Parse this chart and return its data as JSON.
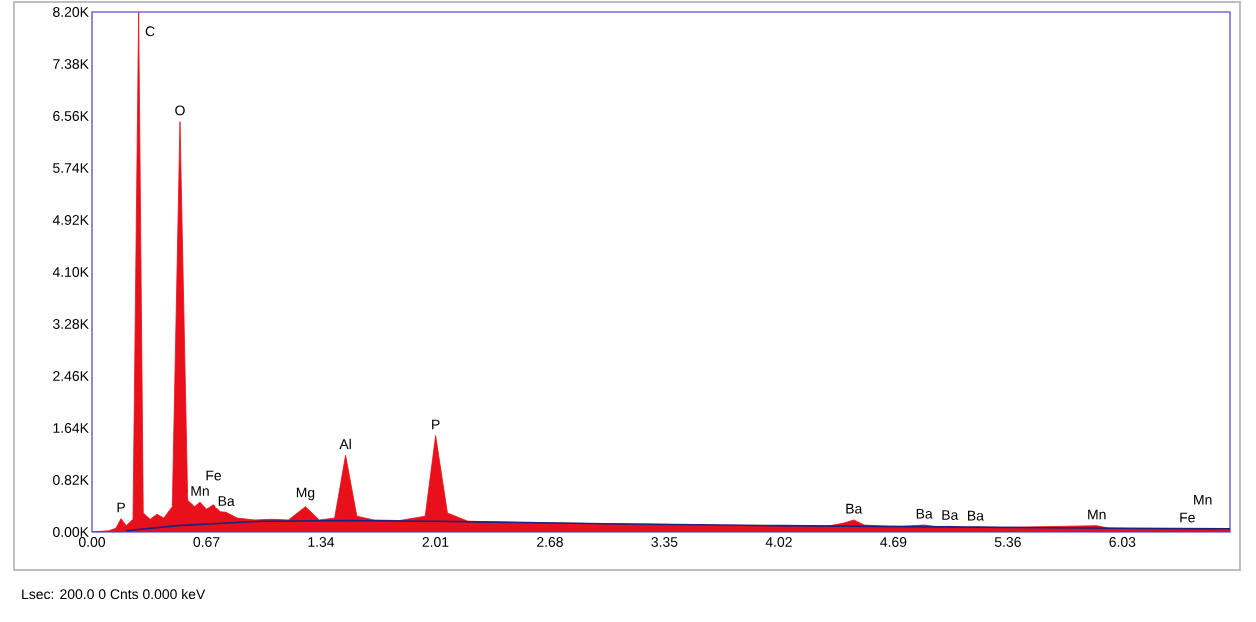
{
  "chart_data": {
    "type": "area",
    "xlim": [
      0,
      6.66
    ],
    "ylim": [
      0,
      8200
    ],
    "xticks": [
      {
        "value": 0,
        "label": "0.00"
      },
      0.67,
      1.34,
      2.01,
      2.68,
      3.35,
      4.02,
      4.69,
      5.36,
      6.03
    ],
    "yticks": [
      {
        "value": 0,
        "label": "0.00K"
      },
      {
        "value": 820,
        "label": "0.82K"
      },
      {
        "value": 1640,
        "label": "1.64K"
      },
      {
        "value": 2460,
        "label": "2.46K"
      },
      {
        "value": 3280,
        "label": "3.28K"
      },
      {
        "value": 4100,
        "label": "4.10K"
      },
      {
        "value": 4920,
        "label": "4.92K"
      },
      {
        "value": 5740,
        "label": "5.74K"
      },
      {
        "value": 6560,
        "label": "6.56K"
      },
      {
        "value": 7380,
        "label": "7.38K"
      },
      {
        "value": 8200,
        "label": "8.20K"
      }
    ],
    "series": [
      {
        "color": "#e8101a",
        "x": [
          0.0,
          0.1,
          0.14,
          0.17,
          0.2,
          0.24,
          0.273,
          0.3,
          0.34,
          0.38,
          0.42,
          0.47,
          0.515,
          0.56,
          0.6,
          0.632,
          0.67,
          0.711,
          0.75,
          0.785,
          0.85,
          0.95,
          1.05,
          1.15,
          1.249,
          1.33,
          1.42,
          1.484,
          1.55,
          1.65,
          1.8,
          1.95,
          2.011,
          2.08,
          2.2,
          2.5,
          3.0,
          3.35,
          3.8,
          4.3,
          4.4,
          4.458,
          4.52,
          4.7,
          4.87,
          4.95,
          5.02,
          5.1,
          5.17,
          5.3,
          5.88,
          5.95,
          6.2,
          6.41,
          6.5,
          6.66
        ],
        "values": [
          0,
          20,
          60,
          210,
          100,
          200,
          8200,
          300,
          200,
          280,
          220,
          400,
          6470,
          500,
          400,
          470,
          360,
          430,
          320,
          310,
          220,
          190,
          200,
          190,
          400,
          190,
          220,
          1210,
          250,
          190,
          180,
          250,
          1520,
          300,
          170,
          150,
          130,
          120,
          100,
          90,
          140,
          190,
          110,
          80,
          110,
          80,
          90,
          70,
          80,
          70,
          100,
          60,
          50,
          50,
          50,
          40
        ]
      },
      {
        "type": "line",
        "color": "#1a237e",
        "x": [
          0.2,
          0.5,
          1.0,
          1.5,
          2.0,
          3.0,
          4.0,
          5.0,
          6.0,
          6.66
        ],
        "values": [
          20,
          100,
          170,
          180,
          170,
          130,
          100,
          80,
          60,
          50
        ]
      }
    ],
    "annotations": [
      {
        "text": "P",
        "x": 0.17,
        "y": 210
      },
      {
        "text": "C",
        "x": 0.273,
        "y": 8200
      },
      {
        "text": "O",
        "x": 0.515,
        "y": 6470
      },
      {
        "text": "Mn",
        "x": 0.632,
        "y": 470
      },
      {
        "text": "Fe",
        "x": 0.711,
        "y": 430
      },
      {
        "text": "Ba",
        "x": 0.785,
        "y": 310
      },
      {
        "text": "Mg",
        "x": 1.249,
        "y": 400
      },
      {
        "text": "Al",
        "x": 1.484,
        "y": 1210
      },
      {
        "text": "P",
        "x": 2.011,
        "y": 1520
      },
      {
        "text": "Ba",
        "x": 4.458,
        "y": 190
      },
      {
        "text": "Ba",
        "x": 4.87,
        "y": 110
      },
      {
        "text": "Ba",
        "x": 5.02,
        "y": 90
      },
      {
        "text": "Ba",
        "x": 5.17,
        "y": 80
      },
      {
        "text": "Mn",
        "x": 5.88,
        "y": 100
      },
      {
        "text": "Fe",
        "x": 6.41,
        "y": 50
      },
      {
        "text": "Mn",
        "x": 6.5,
        "y": 50
      },
      "Lsec: 200.0 0 Cnts  0.000 keV"
    ]
  }
}
